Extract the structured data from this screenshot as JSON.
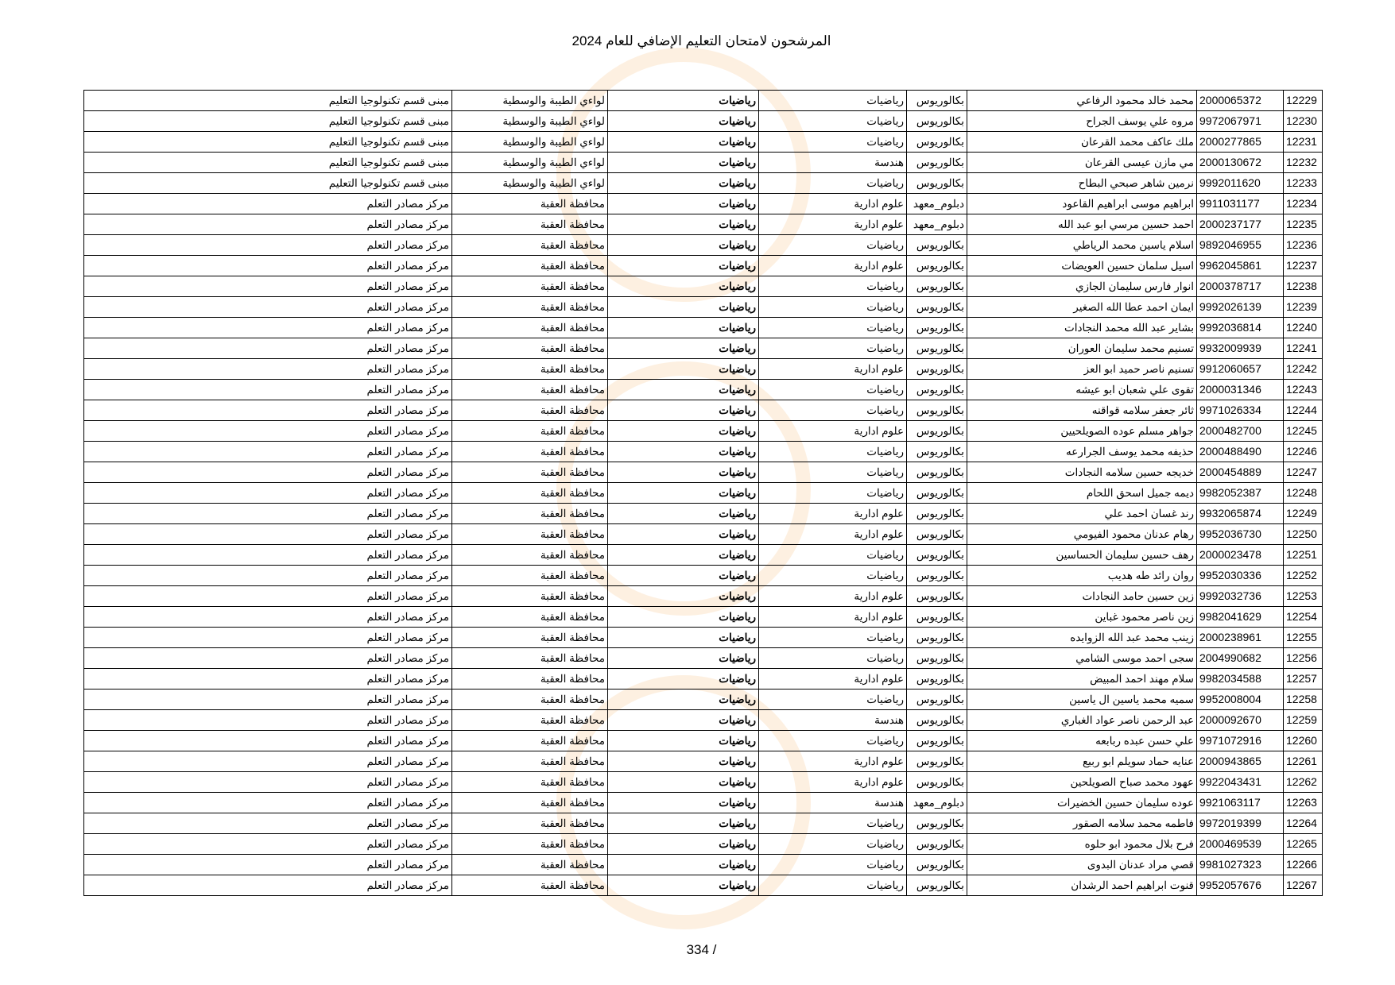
{
  "title": "المرشحون لامتحان التعليم الإضافي للعام 2024",
  "page_number": "334 /",
  "rows": [
    [
      "12229",
      "2000065372",
      "محمد خالد محمود الرفاعي",
      "بكالوريوس",
      "رياضيات",
      "رياضيات",
      "لواءي الطيبة والوسطية",
      "مبنى قسم تكنولوجيا التعليم"
    ],
    [
      "12230",
      "9972067971",
      "مروه علي يوسف الجراح",
      "بكالوريوس",
      "رياضيات",
      "رياضيات",
      "لواءي الطيبة والوسطية",
      "مبنى قسم تكنولوجيا التعليم"
    ],
    [
      "12231",
      "2000277865",
      "ملك عاكف محمد القرعان",
      "بكالوريوس",
      "رياضيات",
      "رياضيات",
      "لواءي الطيبة والوسطية",
      "مبنى قسم تكنولوجيا التعليم"
    ],
    [
      "12232",
      "2000130672",
      "مي مازن عيسى القرعان",
      "بكالوريوس",
      "هندسة",
      "رياضيات",
      "لواءي الطيبة والوسطية",
      "مبنى قسم تكنولوجيا التعليم"
    ],
    [
      "12233",
      "9992011620",
      "نرمين شاهر صبحي البطاح",
      "بكالوريوس",
      "رياضيات",
      "رياضيات",
      "لواءي الطيبة والوسطية",
      "مبنى قسم تكنولوجيا التعليم"
    ],
    [
      "12234",
      "9911031177",
      "ابراهيم موسى ابراهيم القاعود",
      "دبلوم_معهد",
      "علوم ادارية",
      "رياضيات",
      "محافظة العقبة",
      "مركز مصادر التعلم"
    ],
    [
      "12235",
      "2000237177",
      "احمد حسين مرسي ابو عبد الله",
      "دبلوم_معهد",
      "علوم ادارية",
      "رياضيات",
      "محافظة العقبة",
      "مركز مصادر التعلم"
    ],
    [
      "12236",
      "9892046955",
      "اسلام ياسين محمد الرياطي",
      "بكالوريوس",
      "رياضيات",
      "رياضيات",
      "محافظة العقبة",
      "مركز مصادر التعلم"
    ],
    [
      "12237",
      "9962045861",
      "اسيل سلمان حسين العويضات",
      "بكالوريوس",
      "علوم ادارية",
      "رياضيات",
      "محافظة العقبة",
      "مركز مصادر التعلم"
    ],
    [
      "12238",
      "2000378717",
      "انوار فارس سليمان الجازي",
      "بكالوريوس",
      "رياضيات",
      "رياضيات",
      "محافظة العقبة",
      "مركز مصادر التعلم"
    ],
    [
      "12239",
      "9992026139",
      "ايمان احمد عطا الله الصغير",
      "بكالوريوس",
      "رياضيات",
      "رياضيات",
      "محافظة العقبة",
      "مركز مصادر التعلم"
    ],
    [
      "12240",
      "9992036814",
      "بشاير عبد الله محمد النجادات",
      "بكالوريوس",
      "رياضيات",
      "رياضيات",
      "محافظة العقبة",
      "مركز مصادر التعلم"
    ],
    [
      "12241",
      "9932009939",
      "تسنيم محمد سليمان العوران",
      "بكالوريوس",
      "رياضيات",
      "رياضيات",
      "محافظة العقبة",
      "مركز مصادر التعلم"
    ],
    [
      "12242",
      "9912060657",
      "تسنيم ناصر حميد ابو العز",
      "بكالوريوس",
      "علوم ادارية",
      "رياضيات",
      "محافظة العقبة",
      "مركز مصادر التعلم"
    ],
    [
      "12243",
      "2000031346",
      "تقوى علي شعبان ابو عيشه",
      "بكالوريوس",
      "رياضيات",
      "رياضيات",
      "محافظة العقبة",
      "مركز مصادر التعلم"
    ],
    [
      "12244",
      "9971026334",
      "ثائر جعفر سلامه قواقنه",
      "بكالوريوس",
      "رياضيات",
      "رياضيات",
      "محافظة العقبة",
      "مركز مصادر التعلم"
    ],
    [
      "12245",
      "2000482700",
      "جواهر مسلم عوده الصويلحيين",
      "بكالوريوس",
      "علوم ادارية",
      "رياضيات",
      "محافظة العقبة",
      "مركز مصادر التعلم"
    ],
    [
      "12246",
      "2000488490",
      "حذيفه محمد يوسف الجرارعه",
      "بكالوريوس",
      "رياضيات",
      "رياضيات",
      "محافظة العقبة",
      "مركز مصادر التعلم"
    ],
    [
      "12247",
      "2000454889",
      "خديجه حسين سلامه النجادات",
      "بكالوريوس",
      "رياضيات",
      "رياضيات",
      "محافظة العقبة",
      "مركز مصادر التعلم"
    ],
    [
      "12248",
      "9982052387",
      "ديمه جميل اسحق اللحام",
      "بكالوريوس",
      "رياضيات",
      "رياضيات",
      "محافظة العقبة",
      "مركز مصادر التعلم"
    ],
    [
      "12249",
      "9932065874",
      "رند غسان احمد علي",
      "بكالوريوس",
      "علوم ادارية",
      "رياضيات",
      "محافظة العقبة",
      "مركز مصادر التعلم"
    ],
    [
      "12250",
      "9952036730",
      "رهام عدنان محمود الفيومي",
      "بكالوريوس",
      "علوم ادارية",
      "رياضيات",
      "محافظة العقبة",
      "مركز مصادر التعلم"
    ],
    [
      "12251",
      "2000023478",
      "رهف حسين سليمان الحساسين",
      "بكالوريوس",
      "رياضيات",
      "رياضيات",
      "محافظة العقبة",
      "مركز مصادر التعلم"
    ],
    [
      "12252",
      "9952030336",
      "روان رائد طه هديب",
      "بكالوريوس",
      "رياضيات",
      "رياضيات",
      "محافظة العقبة",
      "مركز مصادر التعلم"
    ],
    [
      "12253",
      "9992032736",
      "زين حسين حامد النجادات",
      "بكالوريوس",
      "علوم ادارية",
      "رياضيات",
      "محافظة العقبة",
      "مركز مصادر التعلم"
    ],
    [
      "12254",
      "9982041629",
      "زين ناصر محمود غباين",
      "بكالوريوس",
      "علوم ادارية",
      "رياضيات",
      "محافظة العقبة",
      "مركز مصادر التعلم"
    ],
    [
      "12255",
      "2000238961",
      "زينب محمد عبد الله الزوايده",
      "بكالوريوس",
      "رياضيات",
      "رياضيات",
      "محافظة العقبة",
      "مركز مصادر التعلم"
    ],
    [
      "12256",
      "2004990682",
      "سجى احمد موسى الشامي",
      "بكالوريوس",
      "رياضيات",
      "رياضيات",
      "محافظة العقبة",
      "مركز مصادر التعلم"
    ],
    [
      "12257",
      "9982034588",
      "سلام مهند احمد المبيض",
      "بكالوريوس",
      "علوم ادارية",
      "رياضيات",
      "محافظة العقبة",
      "مركز مصادر التعلم"
    ],
    [
      "12258",
      "9952008004",
      "سميه محمد ياسين ال ياسين",
      "بكالوريوس",
      "رياضيات",
      "رياضيات",
      "محافظة العقبة",
      "مركز مصادر التعلم"
    ],
    [
      "12259",
      "2000092670",
      "عبد الرحمن ناصر عواد الغباري",
      "بكالوريوس",
      "هندسة",
      "رياضيات",
      "محافظة العقبة",
      "مركز مصادر التعلم"
    ],
    [
      "12260",
      "9971072916",
      "علي حسن عبده ربابعه",
      "بكالوريوس",
      "رياضيات",
      "رياضيات",
      "محافظة العقبة",
      "مركز مصادر التعلم"
    ],
    [
      "12261",
      "2000943865",
      "عنايه حماد سويلم ابو ربيع",
      "بكالوريوس",
      "علوم ادارية",
      "رياضيات",
      "محافظة العقبة",
      "مركز مصادر التعلم"
    ],
    [
      "12262",
      "9922043431",
      "عهود محمد صباح الصويلحين",
      "بكالوريوس",
      "علوم ادارية",
      "رياضيات",
      "محافظة العقبة",
      "مركز مصادر التعلم"
    ],
    [
      "12263",
      "9921063117",
      "عوده سليمان حسين الخضيرات",
      "دبلوم_معهد",
      "هندسة",
      "رياضيات",
      "محافظة العقبة",
      "مركز مصادر التعلم"
    ],
    [
      "12264",
      "9972019399",
      "فاطمه محمد سلامه الصقور",
      "بكالوريوس",
      "رياضيات",
      "رياضيات",
      "محافظة العقبة",
      "مركز مصادر التعلم"
    ],
    [
      "12265",
      "2000469539",
      "فرح بلال محمود ابو حلوه",
      "بكالوريوس",
      "رياضيات",
      "رياضيات",
      "محافظة العقبة",
      "مركز مصادر التعلم"
    ],
    [
      "12266",
      "9981027323",
      "قصي مراد عدنان البدوى",
      "بكالوريوس",
      "رياضيات",
      "رياضيات",
      "محافظة العقبة",
      "مركز مصادر التعلم"
    ],
    [
      "12267",
      "9952057676",
      "قنوت ابراهيم احمد الرشدان",
      "بكالوريوس",
      "رياضيات",
      "رياضيات",
      "محافظة العقبة",
      "مركز مصادر التعلم"
    ]
  ]
}
